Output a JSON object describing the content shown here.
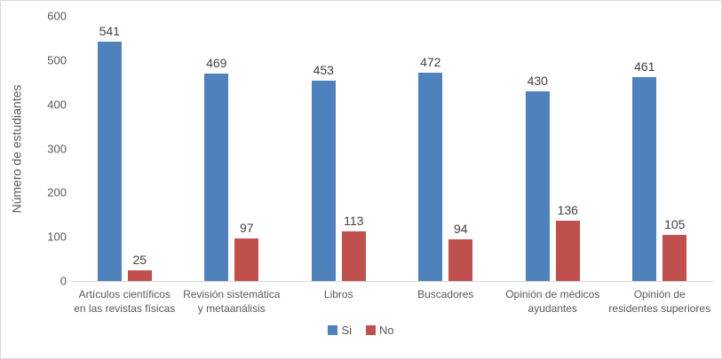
{
  "chart_data": {
    "type": "bar",
    "title": "",
    "ylabel": "Número de estudiantes",
    "xlabel": "",
    "categories": [
      "Artículos científicos en las revistas físicas",
      "Revisión sistemática y metaanálisis",
      "Libros",
      "Buscadores",
      "Opinión de médicos ayudantes",
      "Opinión de residentes superiores"
    ],
    "series": [
      {
        "name": "Si",
        "color": "#4F81BD",
        "values": [
          541,
          469,
          453,
          472,
          430,
          461
        ]
      },
      {
        "name": "No",
        "color": "#C0504D",
        "values": [
          25,
          97,
          113,
          94,
          136,
          105
        ]
      }
    ],
    "ylim": [
      0,
      600
    ],
    "y_ticks": [
      0,
      100,
      200,
      300,
      400,
      500,
      600
    ],
    "grid": false,
    "legend_position": "bottom",
    "colors": {
      "axis_line": "#d9d9d9",
      "tick_text": "#595959",
      "data_label_text": "#404040",
      "figure_border": "#d9d9d9"
    }
  }
}
